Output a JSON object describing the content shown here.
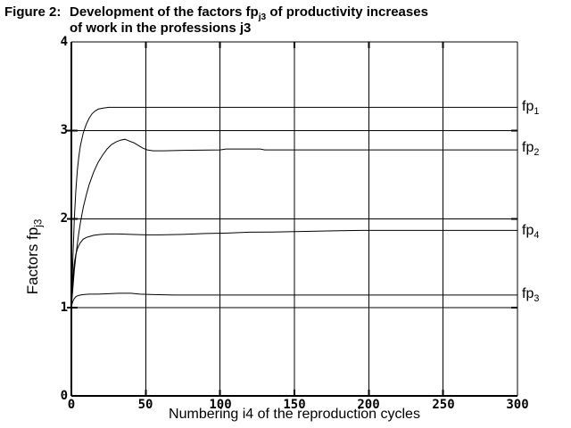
{
  "title": {
    "prefix": "Figure 2:",
    "line1_pre": "Development of the factors fp",
    "line1_sub": "j3",
    "line1_post": " of productivity increases",
    "line2": "of work in the professions j3"
  },
  "axes": {
    "y_label_pre": "Factors fp",
    "y_label_sub": "j3",
    "x_label": "Numbering i4 of the reproduction cycles",
    "y_tick_labels": [
      "0",
      "1",
      "2",
      "3",
      "4"
    ],
    "x_tick_labels": [
      "0",
      "50",
      "100",
      "150",
      "200",
      "250",
      "300"
    ]
  },
  "chart_data": {
    "type": "line",
    "title": "Figure 2: Development of the factors fpj3 of productivity increases of work in the professions j3",
    "xlabel": "Numbering i4 of the reproduction cycles",
    "ylabel": "Factors fpj3",
    "xlim": [
      0,
      300
    ],
    "ylim": [
      0,
      4
    ],
    "x_ticks": [
      0,
      50,
      100,
      150,
      200,
      250,
      300
    ],
    "y_ticks": [
      0,
      1,
      2,
      3,
      4
    ],
    "grid": true,
    "line_color": "#000000",
    "background": "#ffffff",
    "legend_position": "right-margin",
    "series": [
      {
        "name": "fp1",
        "label_base": "fp",
        "label_sub": "1",
        "label_y": 3.26,
        "points": [
          [
            0,
            1
          ],
          [
            1,
            1.55
          ],
          [
            2,
            2.0
          ],
          [
            3,
            2.32
          ],
          [
            4,
            2.55
          ],
          [
            5,
            2.7
          ],
          [
            6,
            2.82
          ],
          [
            7,
            2.9
          ],
          [
            8,
            2.97
          ],
          [
            10,
            3.07
          ],
          [
            12,
            3.14
          ],
          [
            14,
            3.19
          ],
          [
            16,
            3.22
          ],
          [
            18,
            3.24
          ],
          [
            21,
            3.25
          ],
          [
            25,
            3.26
          ],
          [
            30,
            3.26
          ],
          [
            300,
            3.26
          ]
        ]
      },
      {
        "name": "fp2",
        "label_base": "fp",
        "label_sub": "2",
        "label_y": 2.8,
        "points": [
          [
            0,
            1
          ],
          [
            1,
            1.22
          ],
          [
            2,
            1.42
          ],
          [
            3,
            1.58
          ],
          [
            4,
            1.72
          ],
          [
            5,
            1.84
          ],
          [
            6,
            1.95
          ],
          [
            8,
            2.13
          ],
          [
            10,
            2.27
          ],
          [
            12,
            2.39
          ],
          [
            15,
            2.53
          ],
          [
            18,
            2.64
          ],
          [
            21,
            2.72
          ],
          [
            24,
            2.79
          ],
          [
            27,
            2.84
          ],
          [
            30,
            2.87
          ],
          [
            33,
            2.89
          ],
          [
            36,
            2.9
          ],
          [
            39,
            2.88
          ],
          [
            42,
            2.86
          ],
          [
            45,
            2.83
          ],
          [
            48,
            2.8
          ],
          [
            51,
            2.78
          ],
          [
            55,
            2.77
          ],
          [
            62,
            2.77
          ],
          [
            75,
            2.775
          ],
          [
            100,
            2.78
          ],
          [
            104,
            2.79
          ],
          [
            127,
            2.79
          ],
          [
            130,
            2.78
          ],
          [
            200,
            2.78
          ],
          [
            300,
            2.78
          ]
        ]
      },
      {
        "name": "fp4",
        "label_base": "fp",
        "label_sub": "4",
        "label_y": 1.86,
        "points": [
          [
            0,
            1
          ],
          [
            0.5,
            1.18
          ],
          [
            1,
            1.32
          ],
          [
            1.5,
            1.42
          ],
          [
            2,
            1.5
          ],
          [
            3,
            1.6
          ],
          [
            4,
            1.66
          ],
          [
            5,
            1.7
          ],
          [
            6,
            1.73
          ],
          [
            8,
            1.77
          ],
          [
            10,
            1.79
          ],
          [
            12,
            1.8
          ],
          [
            15,
            1.815
          ],
          [
            20,
            1.825
          ],
          [
            25,
            1.83
          ],
          [
            32,
            1.83
          ],
          [
            40,
            1.825
          ],
          [
            50,
            1.82
          ],
          [
            60,
            1.82
          ],
          [
            75,
            1.825
          ],
          [
            90,
            1.835
          ],
          [
            105,
            1.84
          ],
          [
            120,
            1.85
          ],
          [
            135,
            1.852
          ],
          [
            150,
            1.857
          ],
          [
            165,
            1.862
          ],
          [
            180,
            1.867
          ],
          [
            195,
            1.87
          ],
          [
            250,
            1.87
          ],
          [
            300,
            1.87
          ]
        ]
      },
      {
        "name": "fp3",
        "label_base": "fp",
        "label_sub": "3",
        "label_y": 1.15,
        "points": [
          [
            0,
            1
          ],
          [
            0.5,
            1.04
          ],
          [
            1,
            1.07
          ],
          [
            2,
            1.1
          ],
          [
            3,
            1.12
          ],
          [
            4,
            1.13
          ],
          [
            6,
            1.14
          ],
          [
            8,
            1.145
          ],
          [
            12,
            1.15
          ],
          [
            18,
            1.15
          ],
          [
            25,
            1.155
          ],
          [
            32,
            1.16
          ],
          [
            40,
            1.16
          ],
          [
            46,
            1.15
          ],
          [
            55,
            1.145
          ],
          [
            70,
            1.14
          ],
          [
            100,
            1.14
          ],
          [
            300,
            1.14
          ]
        ]
      }
    ]
  }
}
